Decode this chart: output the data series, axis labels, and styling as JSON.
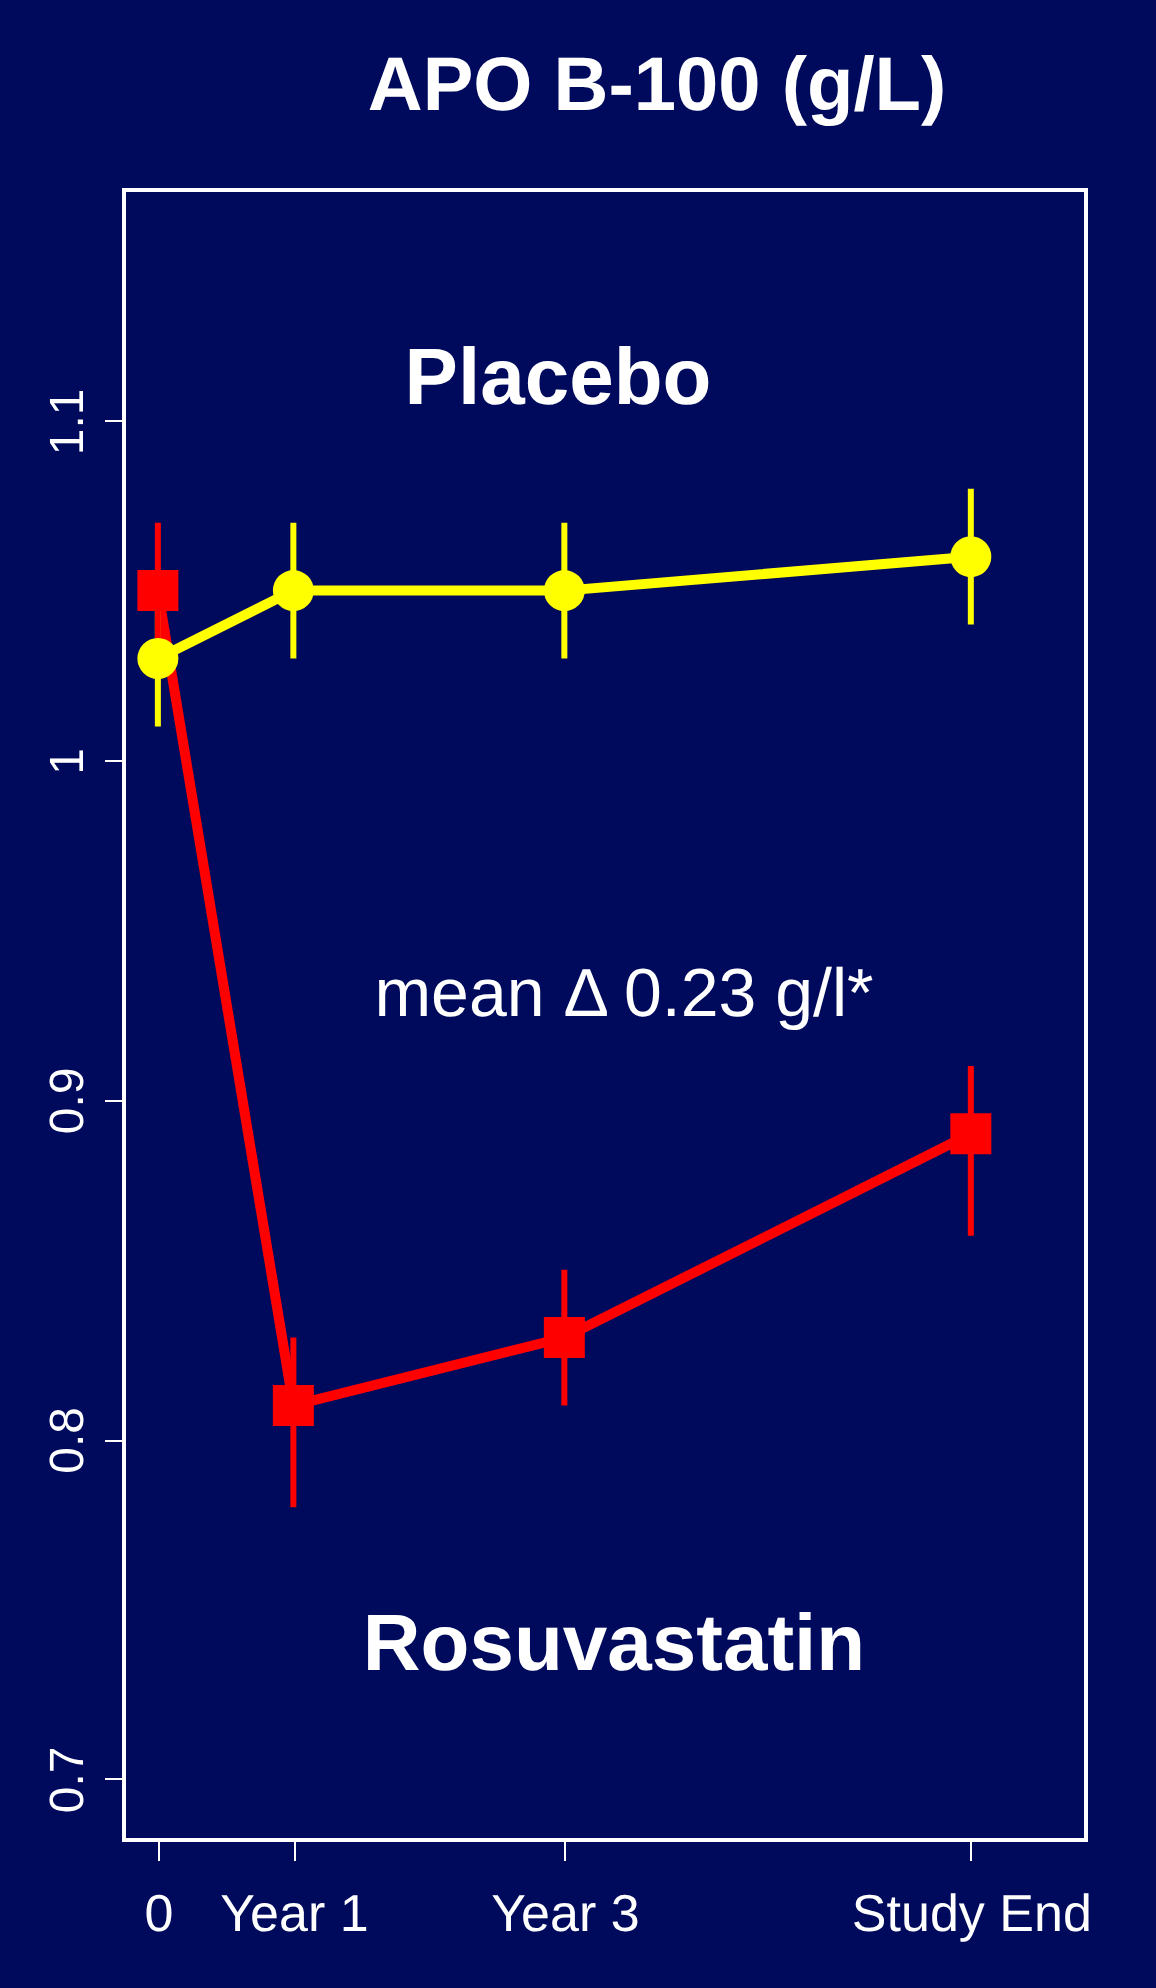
{
  "chart_data": {
    "type": "line",
    "title": "APO B-100 (g/L)",
    "categories": [
      "0",
      "Year 1",
      null,
      "Year 3",
      null,
      null,
      "Study End"
    ],
    "ylim": [
      0.682,
      1.168
    ],
    "yticks": [
      0.7,
      0.8,
      0.9,
      1.0,
      1.1
    ],
    "grid": false,
    "legend": false,
    "line_style": "solid",
    "series": [
      {
        "name": "Placebo",
        "color": "#ffff00",
        "marker": "circle",
        "values": [
          1.03,
          1.05,
          null,
          1.05,
          null,
          null,
          1.06
        ],
        "errors": [
          0.02,
          0.02,
          null,
          0.02,
          null,
          null,
          0.02
        ]
      },
      {
        "name": "Rosuvastatin",
        "color": "#ff0000",
        "marker": "square",
        "values": [
          1.05,
          0.81,
          null,
          0.83,
          null,
          null,
          0.89
        ],
        "errors": [
          0.02,
          [
            0.78,
            0.83
          ],
          null,
          0.02,
          null,
          null,
          [
            0.86,
            0.91
          ]
        ]
      }
    ],
    "annotations": [
      "mean Δ 0.23 g/l*"
    ]
  }
}
